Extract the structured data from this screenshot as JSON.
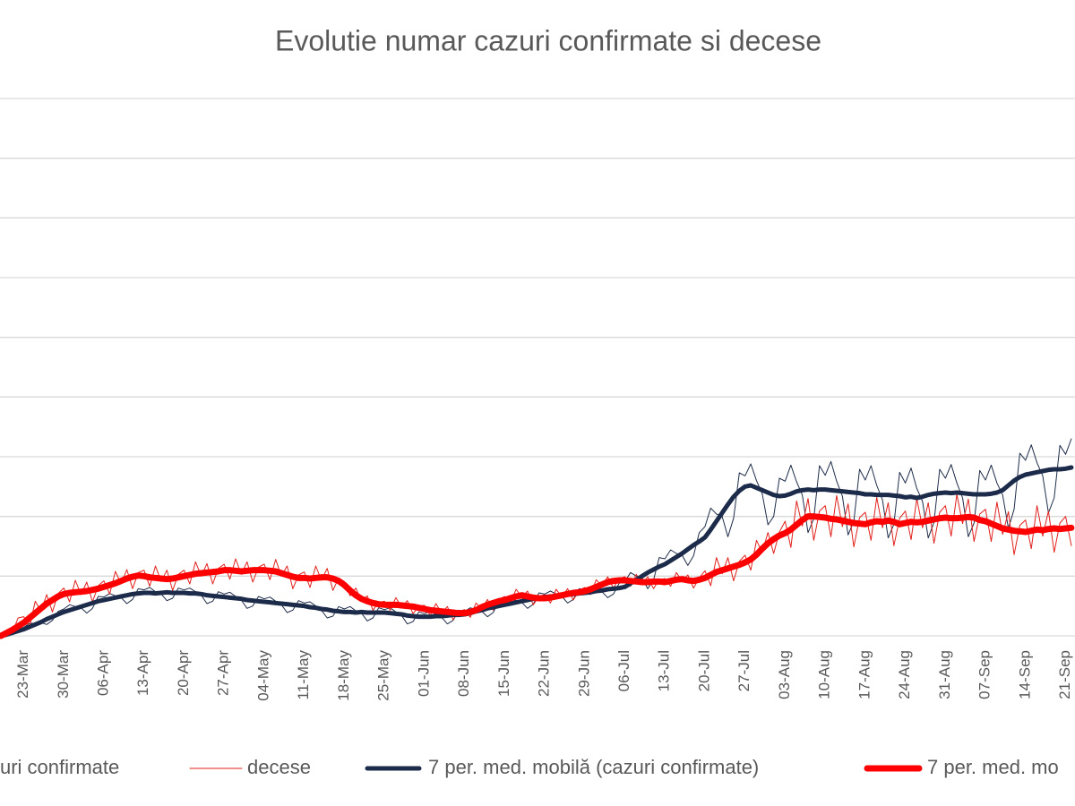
{
  "chart_data": {
    "type": "line",
    "title": "Evolutie numar cazuri confirmate si decese",
    "categories": [
      null,
      null,
      null,
      null,
      "23-Mar",
      null,
      null,
      null,
      null,
      null,
      null,
      "30-Mar",
      null,
      null,
      null,
      null,
      null,
      null,
      "06-Apr",
      null,
      null,
      null,
      null,
      null,
      null,
      "13-Apr",
      null,
      null,
      null,
      null,
      null,
      null,
      "20-Apr",
      null,
      null,
      null,
      null,
      null,
      null,
      "27-Apr",
      null,
      null,
      null,
      null,
      null,
      null,
      "04-May",
      null,
      null,
      null,
      null,
      null,
      null,
      "11-May",
      null,
      null,
      null,
      null,
      null,
      null,
      "18-May",
      null,
      null,
      null,
      null,
      null,
      null,
      "25-May",
      null,
      null,
      null,
      null,
      null,
      null,
      "01-Jun",
      null,
      null,
      null,
      null,
      null,
      null,
      "08-Jun",
      null,
      null,
      null,
      null,
      null,
      null,
      "15-Jun",
      null,
      null,
      null,
      null,
      null,
      null,
      "22-Jun",
      null,
      null,
      null,
      null,
      null,
      null,
      "29-Jun",
      null,
      null,
      null,
      null,
      null,
      null,
      "06-Jul",
      null,
      null,
      null,
      null,
      null,
      null,
      "13-Jul",
      null,
      null,
      null,
      null,
      null,
      null,
      "20-Jul",
      null,
      null,
      null,
      null,
      null,
      null,
      "27-Jul",
      null,
      null,
      null,
      null,
      null,
      null,
      "03-Aug",
      null,
      null,
      null,
      null,
      null,
      null,
      "10-Aug",
      null,
      null,
      null,
      null,
      null,
      null,
      "17-Aug",
      null,
      null,
      null,
      null,
      null,
      null,
      "24-Aug",
      null,
      null,
      null,
      null,
      null,
      null,
      "31-Aug",
      null,
      null,
      null,
      null,
      null,
      null,
      "07-Sep",
      null,
      null,
      null,
      null,
      null,
      null,
      "14-Sep",
      null,
      null,
      null,
      null,
      null,
      null,
      "21-Sep",
      null
    ],
    "series": [
      {
        "name": "uri confirmate",
        "color": "#1f2d4a",
        "values": [
          0.0,
          0.03,
          0.06,
          0.1,
          0.14,
          0.21,
          0.21,
          0.22,
          0.19,
          0.26,
          0.41,
          0.45,
          0.52,
          0.49,
          0.47,
          0.38,
          0.46,
          0.66,
          0.65,
          0.71,
          0.67,
          0.64,
          0.54,
          0.61,
          0.79,
          0.77,
          0.81,
          0.74,
          0.7,
          0.59,
          0.63,
          0.8,
          0.77,
          0.8,
          0.74,
          0.68,
          0.54,
          0.58,
          0.74,
          0.7,
          0.73,
          0.66,
          0.6,
          0.46,
          0.5,
          0.66,
          0.62,
          0.65,
          0.58,
          0.52,
          0.39,
          0.43,
          0.59,
          0.55,
          0.57,
          0.5,
          0.43,
          0.3,
          0.33,
          0.49,
          0.45,
          0.49,
          0.42,
          0.38,
          0.25,
          0.3,
          0.47,
          0.44,
          0.47,
          0.4,
          0.34,
          0.2,
          0.24,
          0.4,
          0.37,
          0.41,
          0.36,
          0.31,
          0.2,
          0.26,
          0.43,
          0.41,
          0.47,
          0.44,
          0.41,
          0.32,
          0.39,
          0.58,
          0.57,
          0.63,
          0.59,
          0.56,
          0.46,
          0.53,
          0.72,
          0.7,
          0.75,
          0.7,
          0.66,
          0.55,
          0.61,
          0.79,
          0.77,
          0.82,
          0.78,
          0.74,
          0.64,
          0.7,
          0.88,
          0.91,
          1.06,
          1.0,
          0.97,
          0.79,
          0.93,
          1.31,
          1.29,
          1.44,
          1.38,
          1.35,
          1.18,
          1.34,
          1.73,
          1.83,
          2.14,
          2.04,
          2.0,
          1.66,
          1.97,
          2.73,
          2.68,
          2.88,
          2.6,
          2.38,
          1.86,
          2.0,
          2.64,
          2.59,
          2.86,
          2.58,
          2.36,
          1.73,
          1.96,
          2.85,
          2.69,
          2.92,
          2.59,
          2.34,
          1.69,
          1.92,
          2.79,
          2.61,
          2.85,
          2.52,
          2.28,
          1.64,
          1.87,
          2.74,
          2.56,
          2.81,
          2.47,
          2.25,
          1.64,
          1.9,
          2.79,
          2.64,
          2.87,
          2.56,
          2.31,
          1.66,
          1.89,
          2.77,
          2.61,
          2.86,
          2.56,
          2.36,
          1.8,
          2.12,
          3.06,
          2.94,
          3.2,
          2.9,
          2.68,
          2.06,
          2.31,
          3.19,
          3.04,
          3.3
        ]
      },
      {
        "name": "decese",
        "color": "#e0201b",
        "values": [
          0.0,
          0.1,
          0.05,
          0.3,
          0.32,
          0.15,
          0.58,
          0.41,
          0.69,
          0.4,
          0.71,
          0.8,
          0.57,
          0.93,
          0.69,
          0.9,
          0.57,
          0.84,
          0.92,
          0.7,
          1.08,
          0.87,
          1.11,
          0.79,
          1.06,
          1.1,
          0.83,
          1.17,
          0.91,
          1.1,
          0.76,
          1.03,
          1.1,
          0.87,
          1.24,
          1.0,
          1.21,
          0.87,
          1.13,
          1.2,
          0.95,
          1.29,
          1.03,
          1.24,
          0.9,
          1.15,
          1.2,
          0.94,
          1.28,
          1.0,
          1.17,
          0.79,
          1.02,
          1.07,
          0.81,
          1.17,
          0.93,
          1.13,
          0.76,
          0.97,
          0.91,
          0.67,
          0.8,
          0.59,
          0.67,
          0.43,
          0.56,
          0.58,
          0.43,
          0.64,
          0.48,
          0.59,
          0.37,
          0.5,
          0.51,
          0.34,
          0.54,
          0.38,
          0.49,
          0.27,
          0.41,
          0.44,
          0.31,
          0.55,
          0.45,
          0.61,
          0.43,
          0.61,
          0.66,
          0.54,
          0.78,
          0.65,
          0.75,
          0.52,
          0.66,
          0.69,
          0.55,
          0.78,
          0.65,
          0.79,
          0.6,
          0.76,
          0.81,
          0.69,
          0.94,
          0.83,
          0.99,
          0.8,
          0.96,
          0.99,
          0.83,
          1.03,
          0.87,
          0.99,
          0.79,
          0.94,
          0.96,
          0.83,
          1.06,
          0.92,
          1.02,
          0.8,
          0.97,
          1.09,
          0.84,
          1.31,
          1.04,
          1.31,
          0.92,
          1.25,
          1.35,
          1.1,
          1.6,
          1.4,
          1.73,
          1.38,
          1.74,
          1.92,
          1.48,
          2.26,
          1.84,
          2.3,
          1.6,
          2.09,
          2.18,
          1.66,
          2.35,
          1.83,
          2.21,
          1.49,
          1.98,
          2.07,
          1.6,
          2.32,
          1.81,
          2.23,
          1.51,
          1.97,
          2.09,
          1.61,
          2.3,
          1.81,
          2.23,
          1.55,
          2.07,
          2.18,
          1.67,
          2.37,
          1.88,
          2.29,
          1.58,
          2.04,
          2.12,
          1.58,
          2.24,
          1.7,
          2.08,
          1.36,
          1.85,
          1.94,
          1.46,
          2.18,
          1.67,
          2.09,
          1.4,
          1.89,
          2.0,
          1.51
        ]
      },
      {
        "name": "7 per. med. mobilă (cazuri confirmate)",
        "color": "#1c2b4a",
        "values": [
          0.0,
          0.02,
          0.05,
          0.08,
          0.11,
          0.15,
          0.19,
          0.23,
          0.28,
          0.32,
          0.36,
          0.4,
          0.43,
          0.46,
          0.49,
          0.52,
          0.55,
          0.58,
          0.6,
          0.62,
          0.64,
          0.66,
          0.68,
          0.7,
          0.71,
          0.72,
          0.72,
          0.71,
          0.72,
          0.73,
          0.72,
          0.72,
          0.72,
          0.71,
          0.71,
          0.7,
          0.68,
          0.67,
          0.66,
          0.65,
          0.64,
          0.63,
          0.62,
          0.6,
          0.59,
          0.58,
          0.57,
          0.56,
          0.55,
          0.54,
          0.53,
          0.52,
          0.51,
          0.5,
          0.48,
          0.47,
          0.45,
          0.44,
          0.42,
          0.41,
          0.4,
          0.4,
          0.39,
          0.4,
          0.39,
          0.39,
          0.39,
          0.39,
          0.38,
          0.37,
          0.36,
          0.34,
          0.33,
          0.32,
          0.32,
          0.32,
          0.33,
          0.33,
          0.34,
          0.35,
          0.35,
          0.36,
          0.38,
          0.41,
          0.43,
          0.46,
          0.48,
          0.5,
          0.52,
          0.54,
          0.56,
          0.58,
          0.6,
          0.62,
          0.64,
          0.65,
          0.66,
          0.67,
          0.68,
          0.69,
          0.7,
          0.71,
          0.72,
          0.73,
          0.75,
          0.76,
          0.78,
          0.79,
          0.8,
          0.82,
          0.88,
          0.94,
          1.0,
          1.06,
          1.11,
          1.16,
          1.2,
          1.26,
          1.32,
          1.38,
          1.45,
          1.52,
          1.58,
          1.65,
          1.78,
          1.92,
          2.06,
          2.2,
          2.33,
          2.43,
          2.5,
          2.52,
          2.48,
          2.44,
          2.4,
          2.36,
          2.34,
          2.35,
          2.38,
          2.42,
          2.44,
          2.45,
          2.44,
          2.45,
          2.45,
          2.44,
          2.43,
          2.42,
          2.41,
          2.4,
          2.39,
          2.37,
          2.37,
          2.36,
          2.36,
          2.36,
          2.35,
          2.34,
          2.32,
          2.33,
          2.31,
          2.33,
          2.36,
          2.38,
          2.39,
          2.4,
          2.39,
          2.4,
          2.39,
          2.38,
          2.37,
          2.37,
          2.37,
          2.38,
          2.4,
          2.44,
          2.52,
          2.6,
          2.66,
          2.7,
          2.72,
          2.74,
          2.76,
          2.78,
          2.79,
          2.79,
          2.8,
          2.82
        ]
      },
      {
        "name": "7 per. med. mo",
        "color": "#ff0000",
        "values": [
          0.0,
          0.05,
          0.1,
          0.16,
          0.22,
          0.3,
          0.38,
          0.46,
          0.54,
          0.6,
          0.66,
          0.7,
          0.72,
          0.73,
          0.74,
          0.75,
          0.77,
          0.79,
          0.82,
          0.85,
          0.88,
          0.92,
          0.96,
          0.99,
          1.01,
          1.0,
          0.98,
          0.97,
          0.96,
          0.95,
          0.96,
          0.98,
          1.0,
          1.02,
          1.04,
          1.05,
          1.06,
          1.07,
          1.08,
          1.1,
          1.1,
          1.09,
          1.08,
          1.09,
          1.1,
          1.1,
          1.1,
          1.09,
          1.08,
          1.05,
          1.02,
          0.99,
          0.97,
          0.97,
          0.96,
          0.97,
          0.98,
          0.98,
          0.96,
          0.92,
          0.85,
          0.76,
          0.68,
          0.62,
          0.58,
          0.55,
          0.53,
          0.52,
          0.52,
          0.52,
          0.51,
          0.5,
          0.49,
          0.47,
          0.45,
          0.43,
          0.42,
          0.41,
          0.4,
          0.39,
          0.38,
          0.38,
          0.4,
          0.43,
          0.48,
          0.52,
          0.55,
          0.58,
          0.6,
          0.63,
          0.66,
          0.68,
          0.66,
          0.64,
          0.63,
          0.63,
          0.64,
          0.66,
          0.68,
          0.7,
          0.72,
          0.73,
          0.75,
          0.78,
          0.82,
          0.86,
          0.9,
          0.92,
          0.93,
          0.93,
          0.92,
          0.91,
          0.9,
          0.9,
          0.91,
          0.91,
          0.9,
          0.92,
          0.94,
          0.95,
          0.93,
          0.92,
          0.94,
          0.97,
          1.02,
          1.07,
          1.1,
          1.13,
          1.16,
          1.19,
          1.23,
          1.28,
          1.36,
          1.46,
          1.55,
          1.62,
          1.68,
          1.72,
          1.78,
          1.86,
          1.94,
          2.0,
          2.0,
          1.99,
          1.98,
          1.96,
          1.95,
          1.93,
          1.91,
          1.89,
          1.88,
          1.87,
          1.9,
          1.92,
          1.91,
          1.93,
          1.91,
          1.87,
          1.89,
          1.91,
          1.9,
          1.91,
          1.93,
          1.95,
          1.97,
          1.98,
          1.97,
          1.97,
          1.98,
          1.99,
          1.98,
          1.94,
          1.92,
          1.88,
          1.84,
          1.8,
          1.78,
          1.76,
          1.75,
          1.74,
          1.76,
          1.78,
          1.77,
          1.79,
          1.8,
          1.79,
          1.8,
          1.81
        ]
      }
    ],
    "ylim": [
      0,
      9
    ],
    "grid": true,
    "legend": "bottom"
  }
}
